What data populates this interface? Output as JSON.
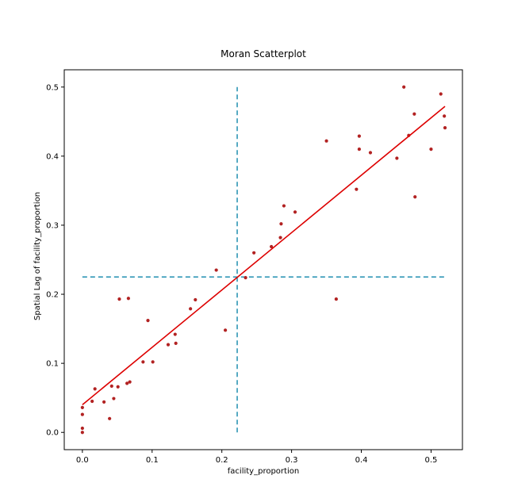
{
  "chart_data": {
    "type": "scatter",
    "title": "Moran Scatterplot",
    "xlabel": "facility_proportion",
    "ylabel": "Spatial Lag of facility_proportion",
    "xlim": [
      -0.026,
      0.545
    ],
    "ylim": [
      -0.025,
      0.525
    ],
    "xticks": [
      0.0,
      0.1,
      0.2,
      0.3,
      0.4,
      0.5
    ],
    "xtick_labels": [
      "0.0",
      "0.1",
      "0.2",
      "0.3",
      "0.4",
      "0.5"
    ],
    "yticks": [
      0.0,
      0.1,
      0.2,
      0.3,
      0.4,
      0.5
    ],
    "ytick_labels": [
      "0.0",
      "0.1",
      "0.2",
      "0.3",
      "0.4",
      "0.5"
    ],
    "grid": false,
    "colors": {
      "points": "#b22222",
      "fit_line": "#dd0000",
      "mean_lines": "#1f8fb0",
      "axes": "#000000"
    },
    "points": [
      {
        "x": 0.0,
        "y": 0.0
      },
      {
        "x": 0.0,
        "y": 0.006
      },
      {
        "x": 0.0,
        "y": 0.026
      },
      {
        "x": 0.0,
        "y": 0.036
      },
      {
        "x": 0.014,
        "y": 0.045
      },
      {
        "x": 0.018,
        "y": 0.063
      },
      {
        "x": 0.031,
        "y": 0.044
      },
      {
        "x": 0.039,
        "y": 0.02
      },
      {
        "x": 0.042,
        "y": 0.067
      },
      {
        "x": 0.045,
        "y": 0.049
      },
      {
        "x": 0.051,
        "y": 0.066
      },
      {
        "x": 0.053,
        "y": 0.193
      },
      {
        "x": 0.064,
        "y": 0.071
      },
      {
        "x": 0.066,
        "y": 0.194
      },
      {
        "x": 0.068,
        "y": 0.073
      },
      {
        "x": 0.087,
        "y": 0.102
      },
      {
        "x": 0.094,
        "y": 0.162
      },
      {
        "x": 0.101,
        "y": 0.102
      },
      {
        "x": 0.123,
        "y": 0.127
      },
      {
        "x": 0.133,
        "y": 0.142
      },
      {
        "x": 0.134,
        "y": 0.129
      },
      {
        "x": 0.155,
        "y": 0.179
      },
      {
        "x": 0.162,
        "y": 0.192
      },
      {
        "x": 0.192,
        "y": 0.235
      },
      {
        "x": 0.205,
        "y": 0.148
      },
      {
        "x": 0.234,
        "y": 0.224
      },
      {
        "x": 0.246,
        "y": 0.26
      },
      {
        "x": 0.271,
        "y": 0.269
      },
      {
        "x": 0.284,
        "y": 0.282
      },
      {
        "x": 0.285,
        "y": 0.302
      },
      {
        "x": 0.289,
        "y": 0.328
      },
      {
        "x": 0.305,
        "y": 0.319
      },
      {
        "x": 0.35,
        "y": 0.422
      },
      {
        "x": 0.364,
        "y": 0.193
      },
      {
        "x": 0.393,
        "y": 0.352
      },
      {
        "x": 0.397,
        "y": 0.429
      },
      {
        "x": 0.397,
        "y": 0.41
      },
      {
        "x": 0.413,
        "y": 0.405
      },
      {
        "x": 0.451,
        "y": 0.397
      },
      {
        "x": 0.461,
        "y": 0.5
      },
      {
        "x": 0.468,
        "y": 0.43
      },
      {
        "x": 0.476,
        "y": 0.461
      },
      {
        "x": 0.477,
        "y": 0.341
      },
      {
        "x": 0.5,
        "y": 0.41
      },
      {
        "x": 0.514,
        "y": 0.49
      },
      {
        "x": 0.519,
        "y": 0.458
      },
      {
        "x": 0.52,
        "y": 0.441
      }
    ],
    "fit_line": {
      "x": [
        0.0,
        0.52
      ],
      "y": [
        0.04,
        0.472
      ]
    },
    "mean_x_line": {
      "x": 0.222,
      "y_range": [
        0.0,
        0.5
      ]
    },
    "mean_y_line": {
      "y": 0.225,
      "x_range": [
        0.0,
        0.52
      ]
    }
  }
}
